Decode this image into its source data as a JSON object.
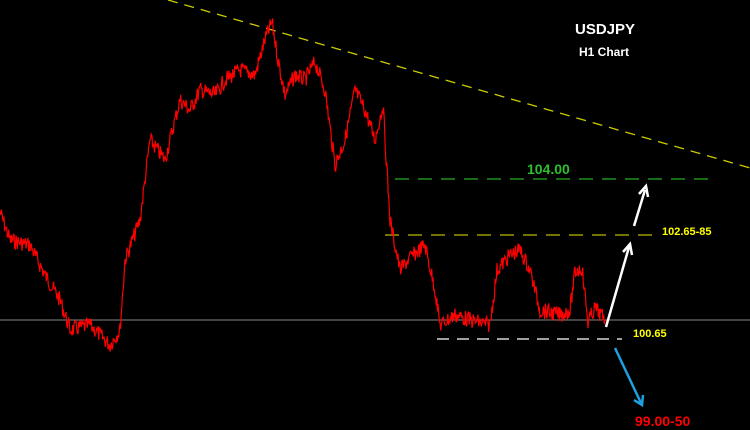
{
  "chart_data": {
    "type": "line",
    "title": "USDJPY",
    "subtitle": "H1 Chart",
    "levels": [
      {
        "label": "104.00",
        "color": "#2fbf2f",
        "line_color": "#1f8f1f"
      },
      {
        "label": "102.65-85",
        "color": "#ffff00",
        "line_color": "#9a9a00"
      },
      {
        "label": "100.65",
        "color": "#ffff00",
        "line_color": "#ffffff"
      },
      {
        "label": "99.00-50",
        "color": "#ff0000"
      }
    ],
    "series_color": "#ff0000",
    "trendline_color": "#cccc00",
    "grid": false
  }
}
